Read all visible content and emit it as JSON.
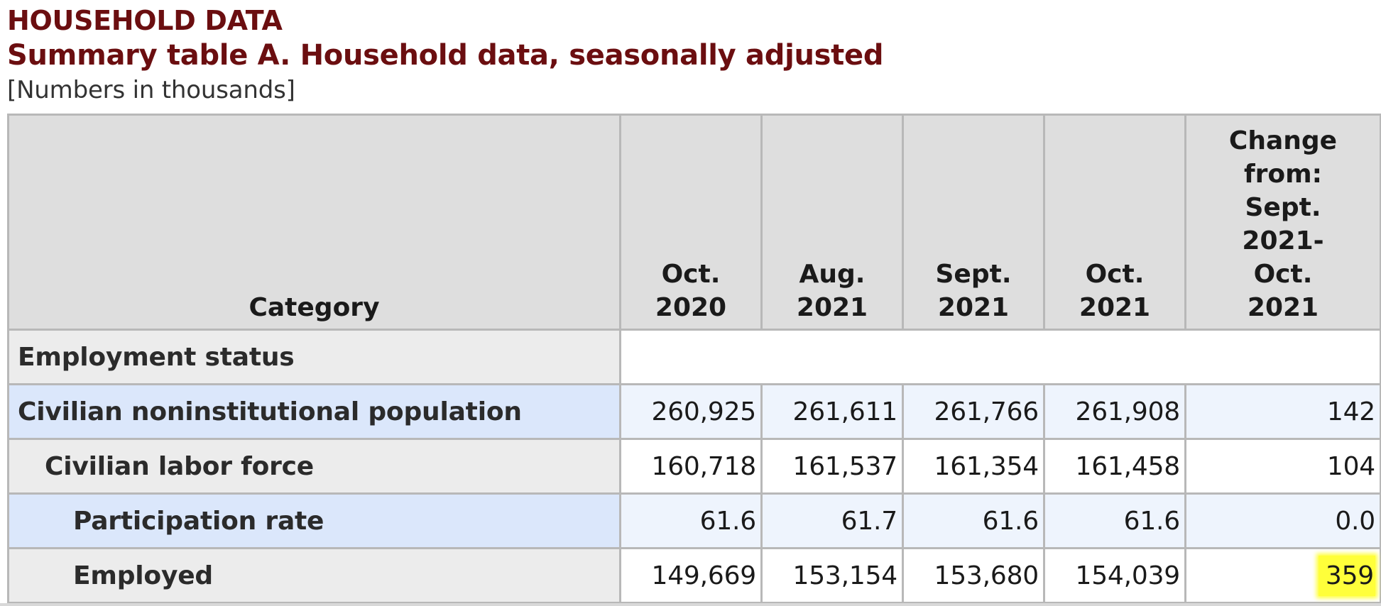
{
  "header": {
    "title": "HOUSEHOLD DATA",
    "subtitle": "Summary table A. Household data, seasonally adjusted",
    "note": "[Numbers in thousands]"
  },
  "table": {
    "columns": {
      "category": "Category",
      "c1_line1": "Oct.",
      "c1_line2": "2020",
      "c2_line1": "Aug.",
      "c2_line2": "2021",
      "c3_line1": "Sept.",
      "c3_line2": "2021",
      "c4_line1": "Oct.",
      "c4_line2": "2021",
      "change_lines": [
        "Change",
        "from:",
        "Sept.",
        "2021-",
        "Oct.",
        "2021"
      ]
    },
    "section": "Employment status",
    "rows": [
      {
        "label": "Civilian noninstitutional population",
        "values": [
          "260,925",
          "261,611",
          "261,766",
          "261,908",
          "142"
        ]
      },
      {
        "label": "Civilian labor force",
        "values": [
          "160,718",
          "161,537",
          "161,354",
          "161,458",
          "104"
        ]
      },
      {
        "label": "Participation rate",
        "values": [
          "61.6",
          "61.7",
          "61.6",
          "61.6",
          "0.0"
        ]
      },
      {
        "label": "Employed",
        "values": [
          "149,669",
          "153,154",
          "153,680",
          "154,039",
          "359"
        ]
      }
    ]
  },
  "colors": {
    "title": "#6b0e10",
    "highlight": "#ffff3a",
    "row_blue": "#dbe7fb",
    "row_gray": "#ececec"
  }
}
